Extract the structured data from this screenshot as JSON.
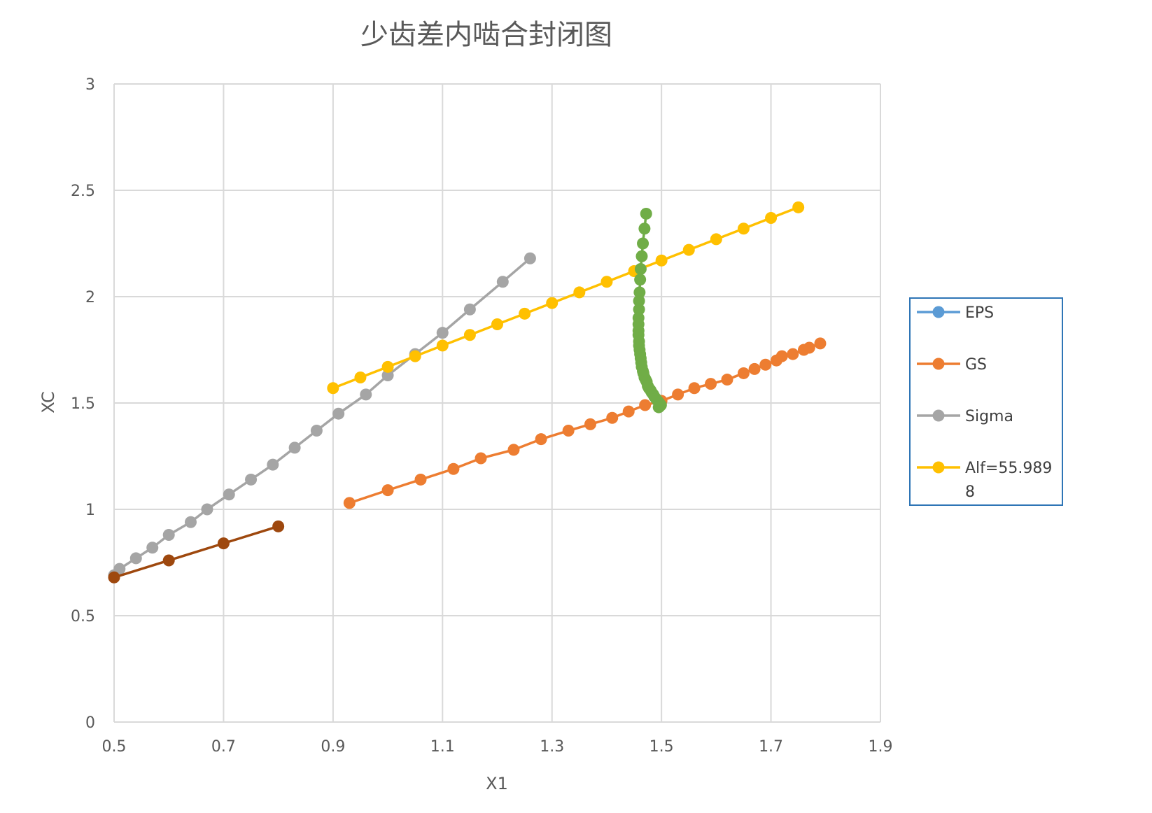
{
  "chart_data": {
    "type": "line",
    "title": "少齿差内啮合封闭图",
    "xlabel": "X1",
    "ylabel": "XC",
    "xlim": [
      0.5,
      1.9
    ],
    "ylim": [
      0,
      3
    ],
    "xticks": [
      "0.5",
      "0.7",
      "0.9",
      "1.1",
      "1.3",
      "1.5",
      "1.7",
      "1.9"
    ],
    "yticks": [
      "0",
      "0.5",
      "1",
      "1.5",
      "2",
      "2.5",
      "3"
    ],
    "grid": true,
    "legend_position": "right",
    "series": [
      {
        "name": "EPS",
        "color": "#5B9BD5",
        "legend": true,
        "x": [],
        "y": []
      },
      {
        "name": "GS",
        "color": "#ED7D31",
        "legend": true,
        "x": [
          0.93,
          1.0,
          1.06,
          1.12,
          1.17,
          1.23,
          1.28,
          1.33,
          1.37,
          1.41,
          1.44,
          1.47,
          1.5,
          1.53,
          1.56,
          1.59,
          1.62,
          1.65,
          1.67,
          1.69,
          1.71,
          1.72,
          1.74,
          1.76,
          1.77,
          1.79
        ],
        "y": [
          1.03,
          1.09,
          1.14,
          1.19,
          1.24,
          1.28,
          1.33,
          1.37,
          1.4,
          1.43,
          1.46,
          1.49,
          1.51,
          1.54,
          1.57,
          1.59,
          1.61,
          1.64,
          1.66,
          1.68,
          1.7,
          1.72,
          1.73,
          1.75,
          1.76,
          1.78
        ]
      },
      {
        "name": "Sigma",
        "color": "#A5A5A5",
        "legend": true,
        "x": [
          0.5,
          0.51,
          0.54,
          0.57,
          0.6,
          0.64,
          0.67,
          0.71,
          0.75,
          0.79,
          0.83,
          0.87,
          0.91,
          0.96,
          1.0,
          1.05,
          1.1,
          1.15,
          1.21,
          1.26
        ],
        "y": [
          0.69,
          0.72,
          0.77,
          0.82,
          0.88,
          0.94,
          1.0,
          1.07,
          1.14,
          1.21,
          1.29,
          1.37,
          1.45,
          1.54,
          1.63,
          1.73,
          1.83,
          1.94,
          2.07,
          2.18
        ]
      },
      {
        "name": "Alf=55.9898",
        "color": "#FFC000",
        "legend": true,
        "x": [
          0.9,
          0.95,
          1.0,
          1.05,
          1.1,
          1.15,
          1.2,
          1.25,
          1.3,
          1.35,
          1.4,
          1.45,
          1.5,
          1.55,
          1.6,
          1.65,
          1.7,
          1.75
        ],
        "y": [
          1.57,
          1.62,
          1.67,
          1.72,
          1.77,
          1.82,
          1.87,
          1.92,
          1.97,
          2.02,
          2.07,
          2.12,
          2.17,
          2.22,
          2.27,
          2.32,
          2.37,
          2.42
        ]
      },
      {
        "name": "",
        "color": "#70AD47",
        "legend": false,
        "x": [
          1.472,
          1.469,
          1.466,
          1.464,
          1.462,
          1.461,
          1.46,
          1.459,
          1.459,
          1.458,
          1.458,
          1.458,
          1.458,
          1.459,
          1.459,
          1.46,
          1.461,
          1.462,
          1.463,
          1.464,
          1.466,
          1.467,
          1.469,
          1.471,
          1.473,
          1.475,
          1.477,
          1.48,
          1.482,
          1.485,
          1.487,
          1.49,
          1.493,
          1.496,
          1.499,
          1.497,
          1.495
        ],
        "y": [
          2.39,
          2.32,
          2.25,
          2.19,
          2.13,
          2.08,
          2.02,
          1.98,
          1.94,
          1.9,
          1.87,
          1.84,
          1.82,
          1.79,
          1.77,
          1.75,
          1.73,
          1.71,
          1.69,
          1.67,
          1.65,
          1.64,
          1.62,
          1.61,
          1.6,
          1.58,
          1.57,
          1.56,
          1.55,
          1.54,
          1.53,
          1.52,
          1.51,
          1.5,
          1.49,
          1.485,
          1.48
        ]
      },
      {
        "name": "",
        "color": "#9E480E",
        "legend": false,
        "x": [
          0.5,
          0.6,
          0.7,
          0.8
        ],
        "y": [
          0.68,
          0.76,
          0.84,
          0.92
        ]
      }
    ]
  }
}
